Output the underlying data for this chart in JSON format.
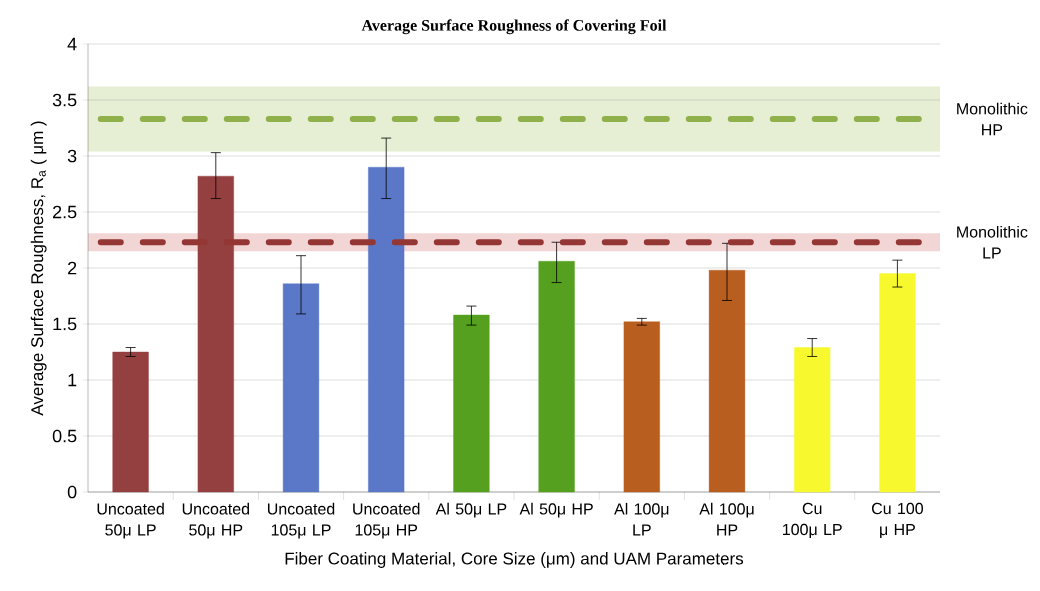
{
  "chart_data": {
    "type": "bar",
    "title": "Average Surface Roughness of Covering Foil",
    "xlabel": "Fiber Coating Material, Core Size (μm) and UAM Parameters",
    "ylabel": "Average Surface Roughness, R$_{a}$ ( μm )",
    "categories": [
      "Uncoated 50μ LP",
      "Uncoated 50μ HP",
      "Uncoated 105μ LP",
      "Uncoated 105μ HP",
      "Al 50μ LP",
      "Al 50μ HP",
      "Al 100μ LP",
      "Al 100μ HP",
      "Cu 100μ LP",
      "Cu 100 μ HP"
    ],
    "values": [
      1.25,
      2.82,
      1.86,
      2.9,
      1.58,
      2.06,
      1.52,
      1.98,
      1.29,
      1.95
    ],
    "errors": [
      [
        1.21,
        1.29
      ],
      [
        2.62,
        3.03
      ],
      [
        1.59,
        2.11
      ],
      [
        2.62,
        3.16
      ],
      [
        1.49,
        1.66
      ],
      [
        1.87,
        2.23
      ],
      [
        1.49,
        1.55
      ],
      [
        1.71,
        2.22
      ],
      [
        1.21,
        1.37
      ],
      [
        1.83,
        2.07
      ]
    ],
    "colors": [
      "#954040",
      "#954040",
      "#5b78c8",
      "#5b78c8",
      "#55a01e",
      "#55a01e",
      "#b85e1f",
      "#b85e1f",
      "#f8f82e",
      "#f8f82e"
    ],
    "ylim": [
      0,
      4
    ],
    "yticks": [
      0,
      0.5,
      1,
      1.5,
      2,
      2.5,
      3,
      3.5,
      4
    ],
    "grid": "y",
    "ref_lines": [
      {
        "axis": "y",
        "value": 3.33,
        "label": "Monolithic HP",
        "color": "#8fb04a",
        "line_style": "dashed"
      },
      {
        "axis": "y",
        "value": 2.23,
        "label": "Monolithic LP",
        "color": "#943634",
        "line_style": "dashed"
      }
    ],
    "bands": [
      {
        "axis": "y",
        "from": 3.04,
        "to": 3.62,
        "color": "#e6eed3"
      },
      {
        "axis": "y",
        "from": 2.15,
        "to": 2.31,
        "color": "#f2d6d6"
      }
    ]
  }
}
